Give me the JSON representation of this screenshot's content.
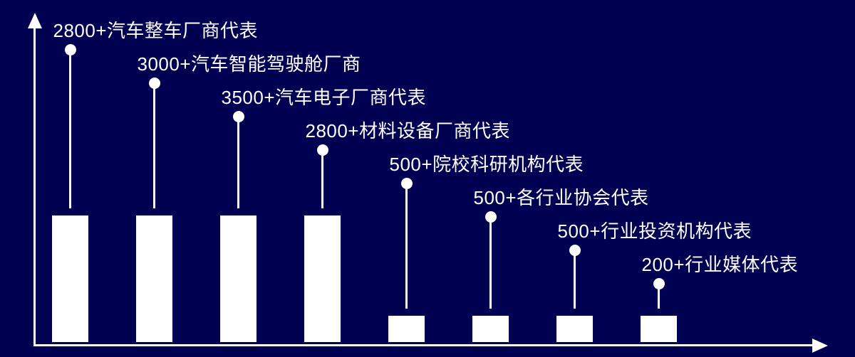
{
  "chart_data": {
    "type": "bar",
    "variant": "lollipop-labeled-bar-chart",
    "title": "",
    "xlabel": "",
    "ylabel": "",
    "categories": [
      "2800+汽车整车厂商代表",
      "3000+汽车智能驾驶舱厂商",
      "3500+汽车电子厂商代表",
      "2800+材料设备厂商代表",
      "500+院校科研机构代表",
      "500+各行业协会代表",
      "500+行业投资机构代表",
      "200+行业媒体代表"
    ],
    "values": [
      2800,
      3000,
      3500,
      2800,
      500,
      500,
      500,
      200
    ],
    "grid": false,
    "legend": false,
    "axes": {
      "style": "arrowed",
      "color": "#ffffff"
    },
    "bar_color": "#ffffff",
    "dot_color": "#ffffff",
    "stem_color": "#ffffff",
    "text_color": "#ffffff",
    "background_color": "#010151",
    "layout_hint": "labels cascade diagonally from top-left to bottom-right, one dot+stem above each bar"
  }
}
